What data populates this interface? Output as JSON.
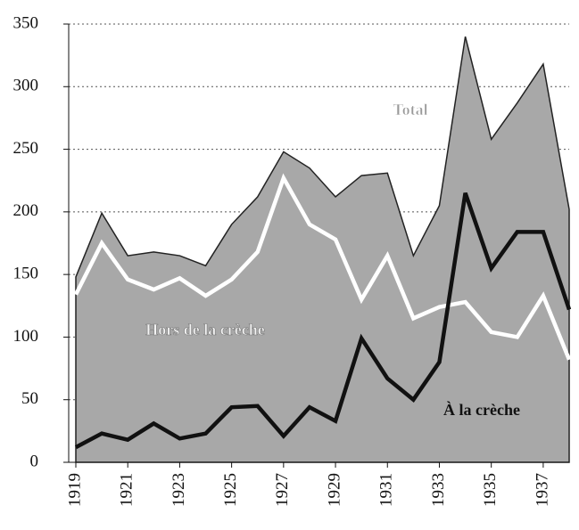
{
  "chart_data": {
    "type": "line",
    "x": [
      1919,
      1920,
      1921,
      1922,
      1923,
      1924,
      1925,
      1926,
      1927,
      1928,
      1929,
      1930,
      1931,
      1932,
      1933,
      1934,
      1935,
      1936,
      1937,
      1938
    ],
    "xlim": [
      1919,
      1938
    ],
    "xticks": [
      1919,
      1921,
      1923,
      1925,
      1927,
      1929,
      1931,
      1933,
      1935,
      1937
    ],
    "ylim": [
      0,
      350
    ],
    "yticks": [
      0,
      50,
      100,
      150,
      200,
      250,
      300,
      350
    ],
    "grid": true,
    "series": [
      {
        "name": "Total",
        "color": "#a8a8a8",
        "area": true,
        "values": [
          148,
          199,
          165,
          168,
          165,
          157,
          190,
          212,
          248,
          235,
          212,
          229,
          231,
          165,
          205,
          340,
          258,
          287,
          318,
          202
        ]
      },
      {
        "name": "Hors de la crèche",
        "color": "#ffffff",
        "values": [
          134,
          175,
          146,
          138,
          147,
          133,
          146,
          168,
          227,
          190,
          178,
          130,
          165,
          115,
          124,
          128,
          104,
          100,
          133,
          82
        ]
      },
      {
        "name": "À la crèche",
        "color": "#111111",
        "values": [
          12,
          23,
          18,
          31,
          19,
          23,
          44,
          45,
          21,
          44,
          33,
          99,
          67,
          50,
          80,
          215,
          155,
          184,
          184,
          122
        ]
      }
    ]
  }
}
